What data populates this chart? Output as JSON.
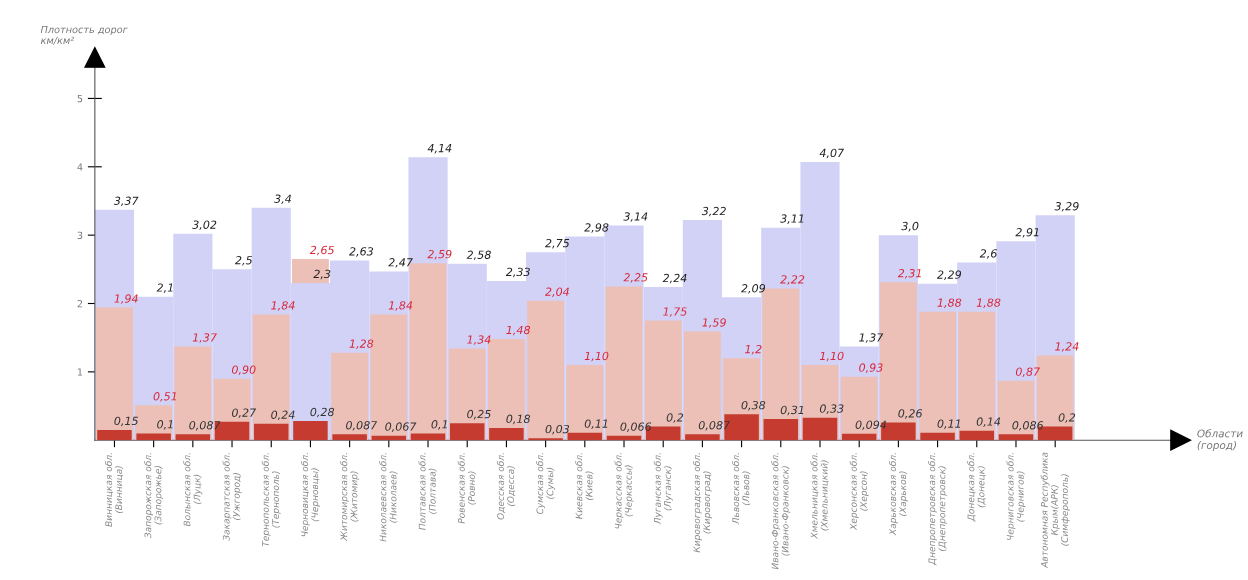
{
  "chart_data": {
    "type": "bar",
    "ylabel": "Плотность дорог\nкм/км²",
    "annotations": [
      "Области\n(город)"
    ],
    "categories": [
      "Винницкая обл.\n(Винница)",
      "Запорожская обл.\n(Запорожье)",
      "Волынская обл.\n(Луцк)",
      "Закарпатская обл.\n(Ужгород)",
      "Тернопольская обл.\n(Тернополь)",
      "Черновицкая обл.\n(Черновцы)",
      "Житомирская обл.\n(Житомир)",
      "Николаевская обл.\n(Николаев)",
      "Полтавская обл.\n(Полтава)",
      "Ровенская обл.\n(Ровно)",
      "Одесская обл.\n(Одесса)",
      "Сумская обл.\n(Сумы)",
      "Киевская обл.\n(Киев)",
      "Черкасская обл.\n(Черкассы)",
      "Луганская обл.\n(Луганск)",
      "Кировоградская обл.\n(Кировоград)",
      "Львовская обл.\n(Львов)",
      "Ивано-Франковская обл.\n(Ивано-Франковск)",
      "Хмельницкая обл.\n(Хмельницкий)",
      "Херсонская обл.\n(Херсон)",
      "Харьковская обл.\n(Харьков)",
      "Днепропетровская обл.\n(Днепропетровск)",
      "Донецкая обл.\n(Донецк)",
      "Черниговская обл.\n(Чернигов)",
      "Автономная Республика\nКрым(АРК)\n(Симферополь)"
    ],
    "series": [
      {
        "color": "#d2d2f7",
        "values": [
          3.37,
          2.1,
          3.02,
          2.5,
          3.4,
          2.3,
          2.63,
          2.47,
          4.14,
          2.58,
          2.33,
          2.75,
          2.98,
          3.14,
          2.24,
          3.22,
          2.09,
          3.11,
          4.07,
          1.37,
          3.0,
          2.29,
          2.6,
          2.91,
          3.29
        ],
        "value_labels": [
          "3,37",
          "2,1",
          "3,02",
          "2,5",
          "3,4",
          "2,3",
          "2,63",
          "2,47",
          "4,14",
          "2,58",
          "2,33",
          "2,75",
          "2,98",
          "3,14",
          "2,24",
          "3,22",
          "2,09",
          "3,11",
          "4,07",
          "1,37",
          "3,0",
          "2,29",
          "2,6",
          "2,91",
          "3,29"
        ]
      },
      {
        "color": "#ecc0b6",
        "values": [
          1.94,
          0.51,
          1.37,
          0.9,
          1.84,
          2.65,
          1.28,
          1.84,
          2.59,
          1.34,
          1.48,
          2.04,
          1.1,
          2.25,
          1.75,
          1.59,
          1.2,
          2.22,
          1.1,
          0.93,
          2.31,
          1.88,
          1.88,
          0.87,
          1.24
        ],
        "value_labels": [
          "1,94",
          "0,51",
          "1,37",
          "0,90",
          "1,84",
          "2,65",
          "1,28",
          "1,84",
          "2,59",
          "1,34",
          "1,48",
          "2,04",
          "1,10",
          "2,25",
          "1,75",
          "1,59",
          "1,2",
          "2,22",
          "1,10",
          "0,93",
          "2,31",
          "1,88",
          "1,88",
          "0,87",
          "1,24"
        ]
      },
      {
        "color": "#c53b2f",
        "values": [
          0.15,
          0.1,
          0.087,
          0.27,
          0.24,
          0.28,
          0.087,
          0.067,
          0.1,
          0.25,
          0.18,
          0.03,
          0.11,
          0.066,
          0.2,
          0.087,
          0.38,
          0.31,
          0.33,
          0.094,
          0.26,
          0.11,
          0.14,
          0.086,
          0.2
        ],
        "value_labels": [
          "0,15",
          "0,1",
          "0,087",
          "0,27",
          "0,24",
          "0,28",
          "0,087",
          "0,067",
          "0,1",
          "0,25",
          "0,18",
          "0,03",
          "0,11",
          "0,066",
          "0,2",
          "0,087",
          "0,38",
          "0,31",
          "0,33",
          "0,094",
          "0,26",
          "0,11",
          "0,14",
          "0,086",
          "0,2"
        ]
      }
    ],
    "ylim": [
      0,
      5.6
    ],
    "yticks": [
      1,
      2,
      3,
      4,
      5
    ],
    "grid": false,
    "legend": false
  }
}
